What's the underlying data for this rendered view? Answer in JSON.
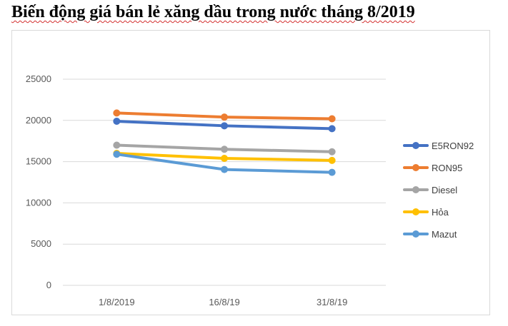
{
  "title": "Biến động giá bán lẻ xăng dầu trong nước tháng 8/2019",
  "chart_data": {
    "type": "line",
    "title": "",
    "xlabel": "",
    "ylabel": "",
    "categories": [
      "1/8/2019",
      "16/8/19",
      "31/8/19"
    ],
    "ylim": [
      0,
      25000
    ],
    "yticks": [
      0,
      5000,
      10000,
      15000,
      20000,
      25000
    ],
    "grid": true,
    "legend": "right",
    "series": [
      {
        "name": "E5RON92",
        "color": "#4472c4",
        "values": [
          19900,
          19350,
          19000
        ]
      },
      {
        "name": "RON95",
        "color": "#ed7d31",
        "values": [
          20900,
          20400,
          20200
        ]
      },
      {
        "name": "Diesel",
        "color": "#a5a5a5",
        "values": [
          17000,
          16500,
          16200
        ]
      },
      {
        "name": "Hỏa",
        "color": "#ffc000",
        "values": [
          16000,
          15400,
          15150
        ]
      },
      {
        "name": "Mazut",
        "color": "#5b9bd5",
        "values": [
          15900,
          14050,
          13700
        ]
      }
    ]
  }
}
